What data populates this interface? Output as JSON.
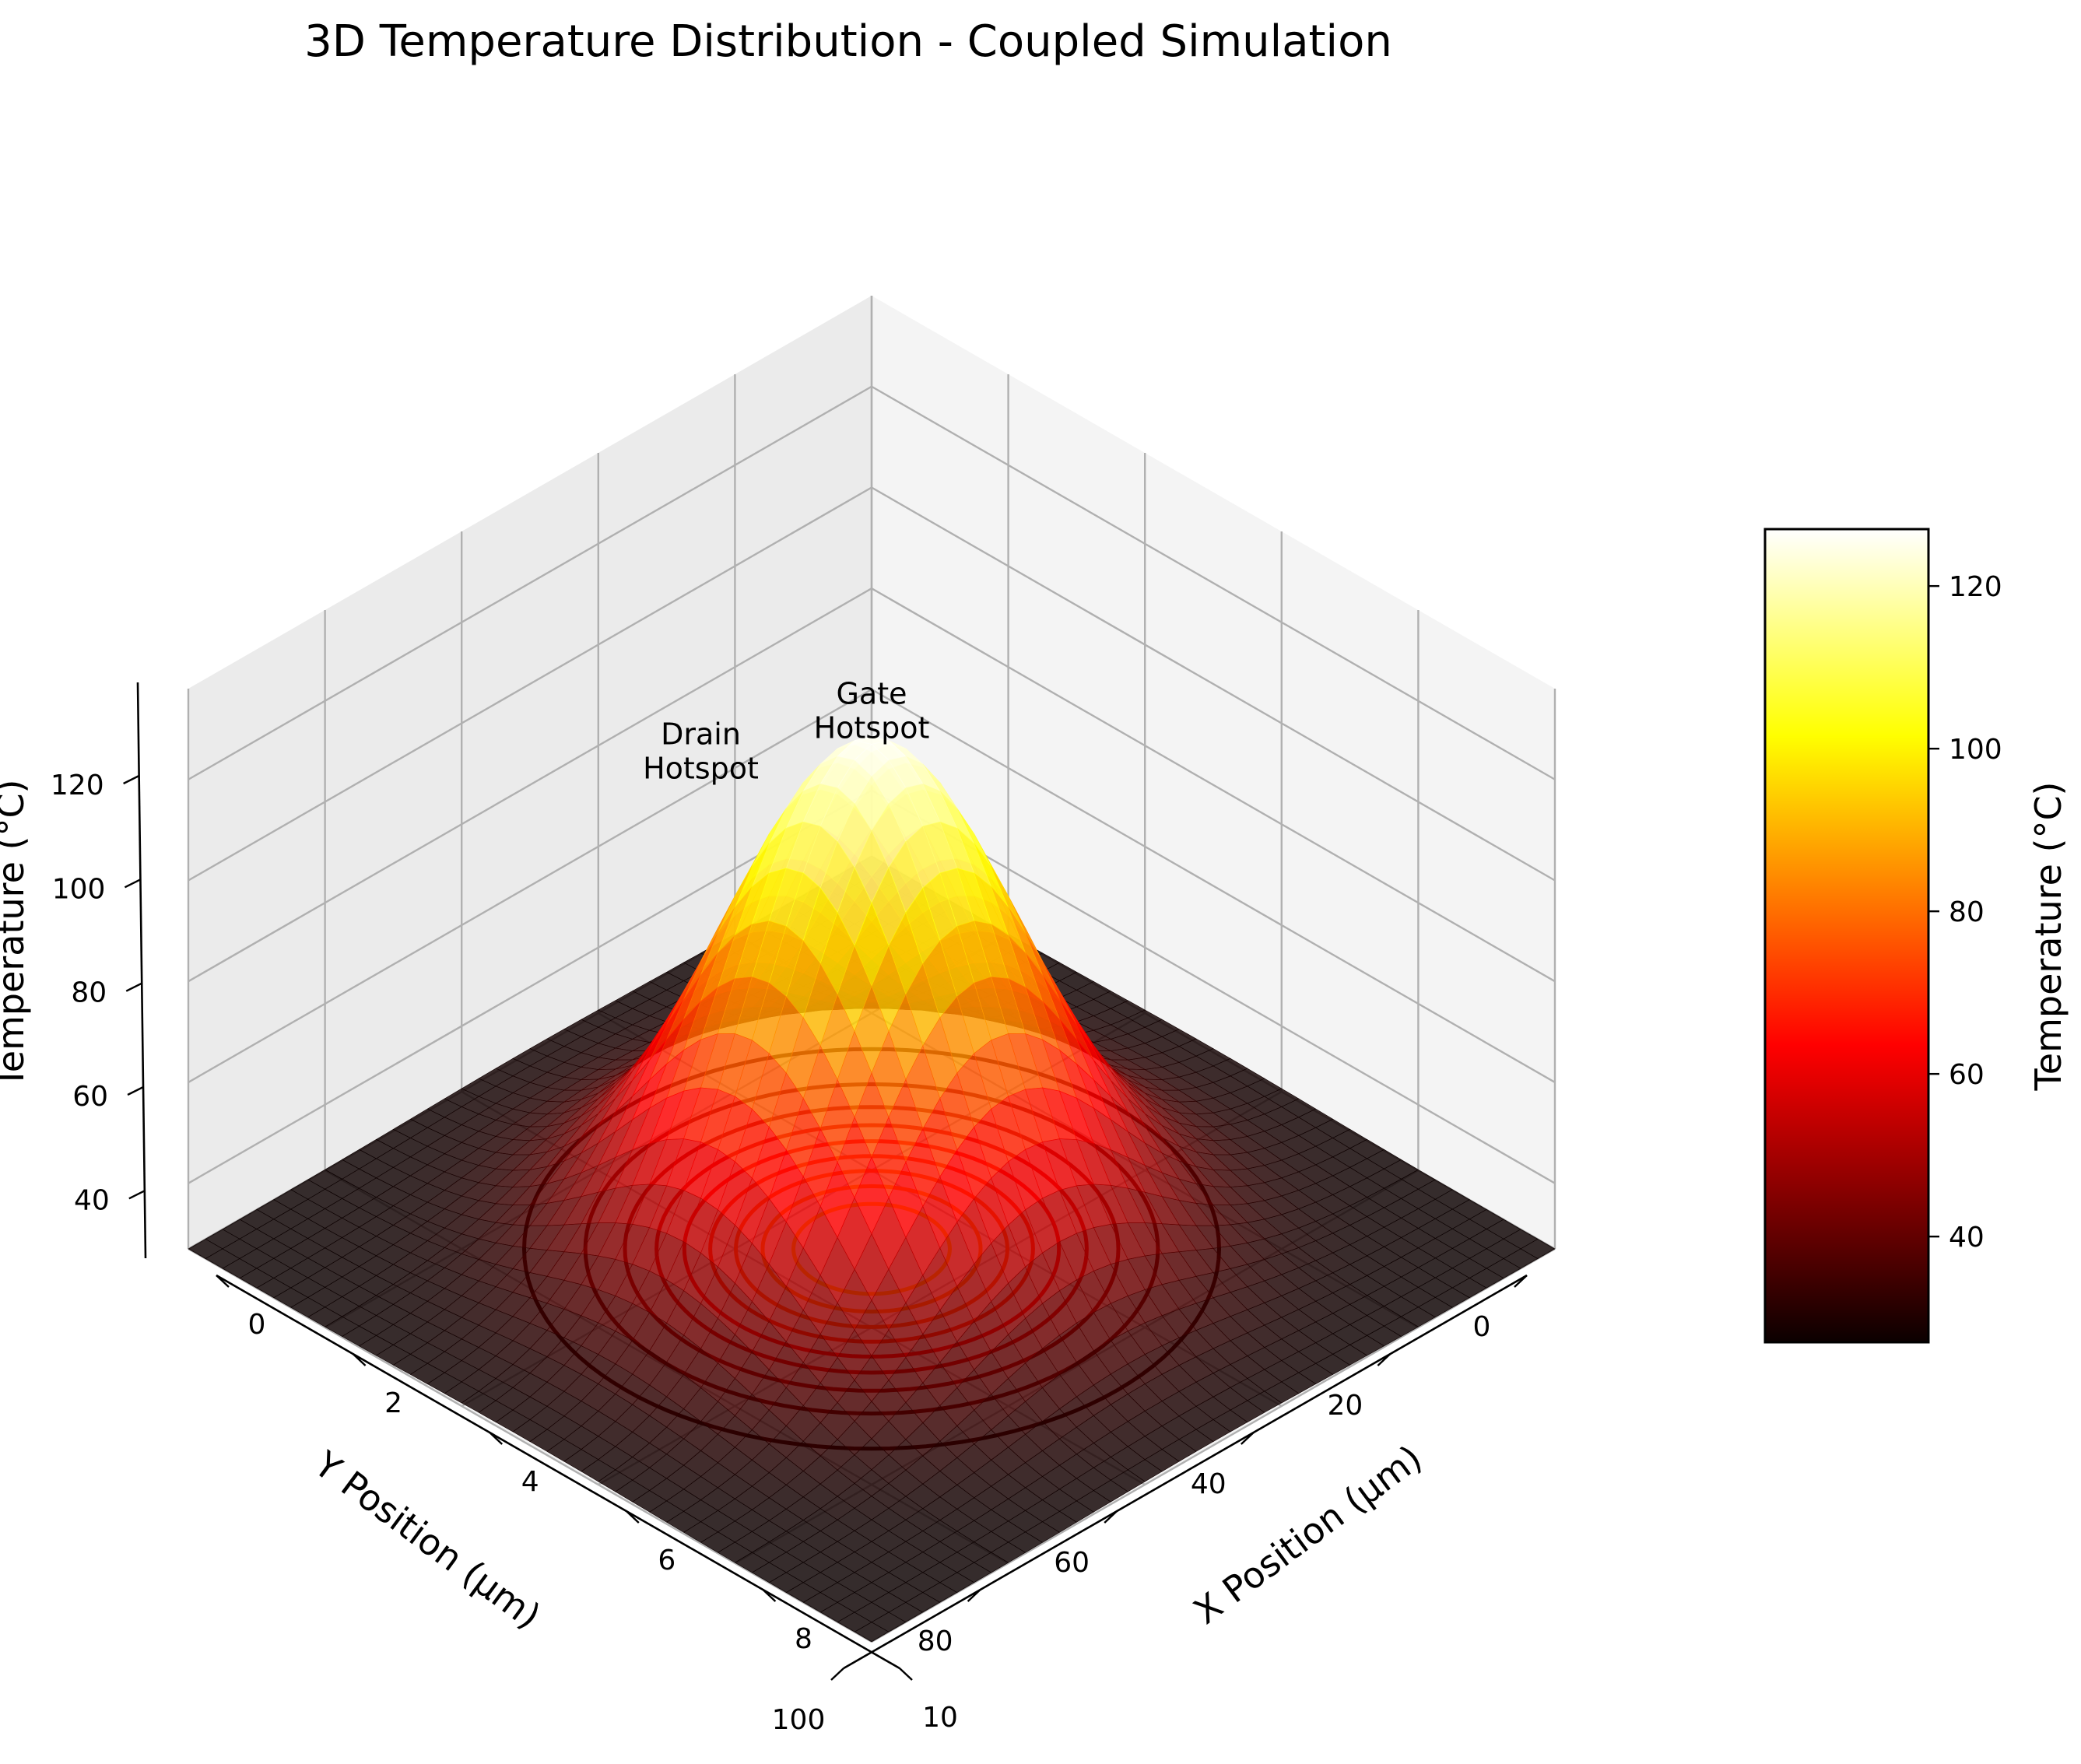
{
  "chart_data": {
    "type": "surface",
    "title": "3D Temperature Distribution - Coupled Simulation",
    "xlabel": "X Position (μm)",
    "ylabel": "Y Position (μm)",
    "zlabel": "Temperature (°C)",
    "x_ticks": [
      "0",
      "2",
      "4",
      "6",
      "8",
      "10"
    ],
    "y_ticks": [
      "0",
      "20",
      "40",
      "60",
      "80",
      "100"
    ],
    "z_ticks": [
      "40",
      "60",
      "80",
      "100",
      "120"
    ],
    "xlim": [
      0,
      10
    ],
    "ylim": [
      0,
      100
    ],
    "zlim": [
      27,
      138
    ],
    "grid": true,
    "colormap": "hot",
    "surface": {
      "model": "gaussian_peak",
      "ambient": 27,
      "peak_temperature": 127,
      "peak_x": 5,
      "peak_y": 50,
      "sigma_x": 1.6,
      "sigma_y": 16
    },
    "annotations": [
      {
        "text_lines": [
          "Gate",
          "Hotspot"
        ],
        "x": 5,
        "y": 50,
        "z": 135
      },
      {
        "text_lines": [
          "Drain",
          "Hotspot"
        ],
        "x": 3.3,
        "y": 58,
        "z": 120
      }
    ],
    "floor_contours": {
      "z": 27,
      "levels": [
        35,
        45,
        55,
        65,
        75,
        85,
        95,
        105,
        115
      ]
    },
    "colorbar": {
      "label": "Temperature (°C)",
      "range": [
        27,
        127
      ],
      "ticks": [
        "40",
        "60",
        "80",
        "100",
        "120"
      ]
    }
  }
}
